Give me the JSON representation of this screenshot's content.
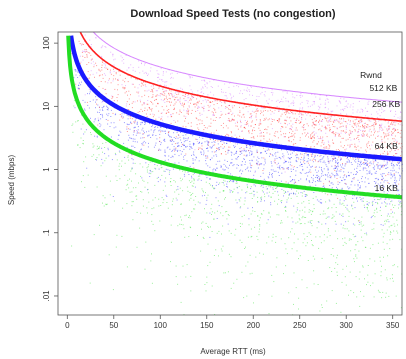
{
  "chart_data": {
    "type": "scatter",
    "title": "Download Speed Tests (no congestion)",
    "xlabel": "Average RTT (ms)",
    "ylabel": "Speed (mbps)",
    "xlim": [
      -10,
      360
    ],
    "ylim": [
      0.005,
      150
    ],
    "y_scale": "log",
    "grid": false,
    "legend_placement": "right (inline labels)",
    "x_ticks": [
      {
        "value": 0,
        "label": "0"
      },
      {
        "value": 50,
        "label": "50"
      },
      {
        "value": 100,
        "label": "100"
      },
      {
        "value": 150,
        "label": "150"
      },
      {
        "value": 200,
        "label": "200"
      },
      {
        "value": 250,
        "label": "250"
      },
      {
        "value": 300,
        "label": "300"
      },
      {
        "value": 350,
        "label": "350"
      }
    ],
    "y_ticks": [
      {
        "value": 100,
        "label": "100"
      },
      {
        "value": 10,
        "label": "10"
      },
      {
        "value": 1,
        "label": "1"
      },
      {
        "value": 0.1,
        "label": ".1"
      },
      {
        "value": 0.01,
        "label": ".01"
      }
    ],
    "legend_title": "Rwnd",
    "series": [
      {
        "name": "512 KB",
        "color": "#cc66ff",
        "window_kbits": 4194,
        "label_at": [
          340,
          17.5
        ]
      },
      {
        "name": "256 KB",
        "color": "#ff2020",
        "window_kbits": 2097,
        "label_at": [
          343,
          9.8
        ]
      },
      {
        "name": "64 KB",
        "color": "#1a1aff",
        "window_kbits": 524,
        "label_at": [
          343,
          2.1
        ]
      },
      {
        "name": "16 KB",
        "color": "#22dd22",
        "window_kbits": 131,
        "label_at": [
          343,
          0.46
        ]
      }
    ],
    "curve_samples": [
      {
        "series": "512 KB",
        "points": [
          [
            40,
            104.9
          ],
          [
            100,
            41.9
          ],
          [
            200,
            21.0
          ],
          [
            350,
            12.0
          ]
        ]
      },
      {
        "series": "256 KB",
        "points": [
          [
            20,
            104.9
          ],
          [
            100,
            21.0
          ],
          [
            200,
            10.5
          ],
          [
            350,
            6.0
          ]
        ]
      },
      {
        "series": "64 KB",
        "points": [
          [
            5,
            104.9
          ],
          [
            50,
            10.5
          ],
          [
            100,
            5.2
          ],
          [
            200,
            2.6
          ],
          [
            350,
            1.5
          ]
        ]
      },
      {
        "series": "16 KB",
        "points": [
          [
            5,
            26.2
          ],
          [
            50,
            2.6
          ],
          [
            100,
            1.31
          ],
          [
            200,
            0.66
          ],
          [
            350,
            0.37
          ]
        ]
      }
    ]
  }
}
